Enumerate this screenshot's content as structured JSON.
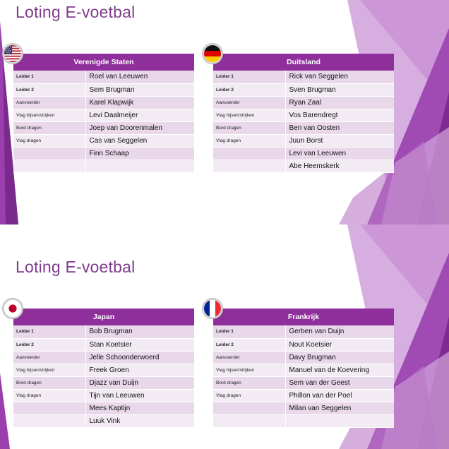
{
  "slides": [
    {
      "title": "Loting E-voetbal",
      "teams": [
        {
          "name": "Verenigde Staten",
          "flag_icon": "usa-flag-icon",
          "rows": [
            {
              "role": "Leider 1",
              "name": "Roel van Leeuwen"
            },
            {
              "role": "Leider 2",
              "name": "Sem Brugman"
            },
            {
              "role": "Aanvoerder",
              "name": "Karel Klapwijk"
            },
            {
              "role": "Vlag hijsen/strijken",
              "name": "Levi Daalmeijer"
            },
            {
              "role": "Bord dragen",
              "name": "Joep van Doorenmalen"
            },
            {
              "role": "Vlag dragen",
              "name": "Cas van Seggelen"
            },
            {
              "role": "",
              "name": "Finn Schaap"
            },
            {
              "role": "",
              "name": ""
            }
          ]
        },
        {
          "name": "Duitsland",
          "flag_icon": "germany-flag-icon",
          "rows": [
            {
              "role": "Leider 1",
              "name": "Rick van Seggelen"
            },
            {
              "role": "Leider 2",
              "name": "Sven Brugman"
            },
            {
              "role": "Aanvoerder",
              "name": "Ryan Zaal"
            },
            {
              "role": "Vlag hijsen/strijken",
              "name": "Vos Barendregt"
            },
            {
              "role": "Bord dragen",
              "name": "Ben van Oosten"
            },
            {
              "role": "Vlag dragen",
              "name": "Juun Borst"
            },
            {
              "role": "",
              "name": "Levi van Leeuwen"
            },
            {
              "role": "",
              "name": "Abe Heemskerk"
            }
          ]
        }
      ]
    },
    {
      "title": "Loting E-voetbal",
      "teams": [
        {
          "name": "Japan",
          "flag_icon": "japan-flag-icon",
          "rows": [
            {
              "role": "Leider 1",
              "name": "Bob Brugman"
            },
            {
              "role": "Leider 2",
              "name": "Stan Koetsier"
            },
            {
              "role": "Aanvoerder",
              "name": "Jelle Schoonderwoerd"
            },
            {
              "role": "Vlag hijsen/strijken",
              "name": "Freek Groen"
            },
            {
              "role": "Bord dragen",
              "name": "Djazz van Duijn"
            },
            {
              "role": "Vlag dragen",
              "name": "Tijn van Leeuwen"
            },
            {
              "role": "",
              "name": "Mees Kaptijn"
            },
            {
              "role": "",
              "name": "Luuk Vink"
            }
          ]
        },
        {
          "name": "Frankrijk",
          "flag_icon": "france-flag-icon",
          "rows": [
            {
              "role": "Leider 1",
              "name": "Gerben van Duijn"
            },
            {
              "role": "Leider 2",
              "name": "Nout Koetsier"
            },
            {
              "role": "Aanvoerder",
              "name": "Davy Brugman"
            },
            {
              "role": "Vlag hijsen/strijken",
              "name": "Manuel van de Koevering"
            },
            {
              "role": "Bord dragen",
              "name": "Sem van der Geest"
            },
            {
              "role": "Vlag dragen",
              "name": "Phillon van der Poel"
            },
            {
              "role": "",
              "name": "Milan van Seggelen"
            },
            {
              "role": "",
              "name": ""
            }
          ]
        }
      ]
    }
  ],
  "colors": {
    "title": "#7f3b8d",
    "header": "#8e2f9b",
    "row_dark": "#e8d8ea",
    "row_light": "#f3ebf4"
  }
}
